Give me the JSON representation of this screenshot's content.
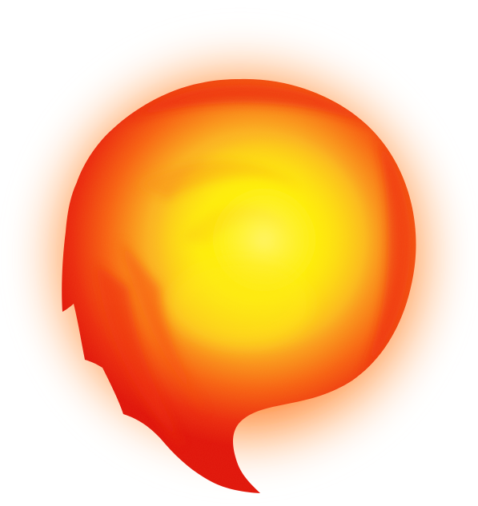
{
  "scene": {
    "subject_icon": "fireball-icon",
    "colors": {
      "background": "#ffffff",
      "outer_glow": "#ff7a1a",
      "rim_red": "#e8120c",
      "mid_orange": "#f76a10",
      "inner_orange": "#fba020",
      "core_yellow": "#fff200",
      "core_light": "#fff76a"
    }
  }
}
